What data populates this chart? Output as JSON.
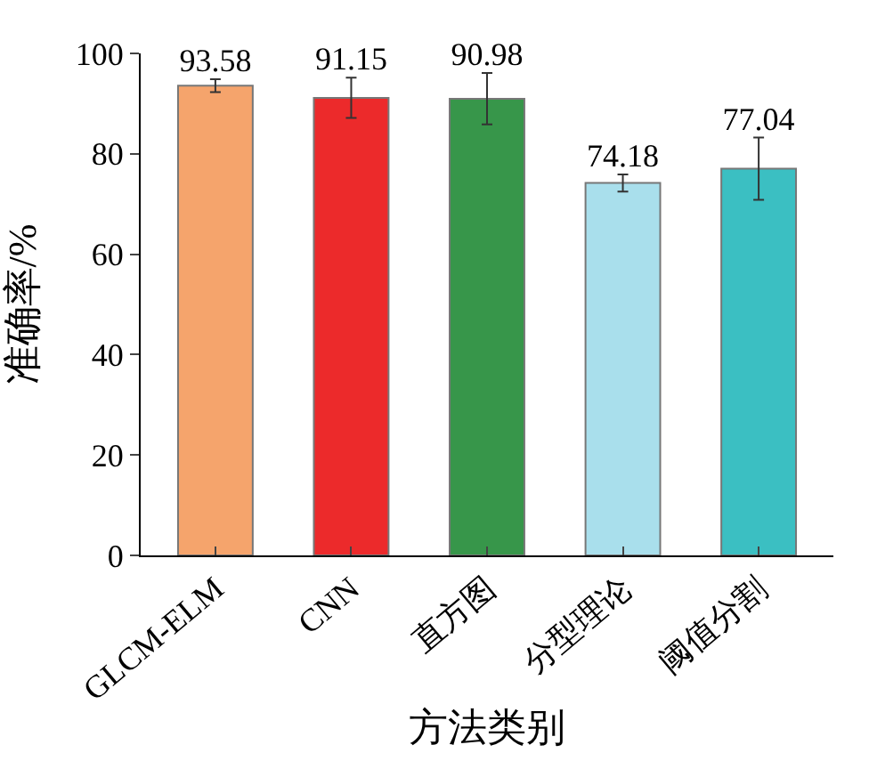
{
  "chart_data": {
    "type": "bar",
    "xlabel": "方法类别",
    "ylabel": "准确率/%",
    "categories": [
      "GLCM-ELM",
      "CNN",
      "直方图",
      "分型理论",
      "阈值分割"
    ],
    "values": [
      93.58,
      91.15,
      90.98,
      74.18,
      77.04
    ],
    "colors": [
      "#f5a46c",
      "#ec2a2b",
      "#37964a",
      "#a9dfec",
      "#3bbfc2"
    ],
    "errors": [
      1.3,
      4,
      5.1,
      1.7,
      6.2
    ],
    "data_labels": true,
    "ylim": [
      0,
      100
    ],
    "yticks": [
      0,
      20,
      40,
      60,
      80,
      100
    ]
  }
}
